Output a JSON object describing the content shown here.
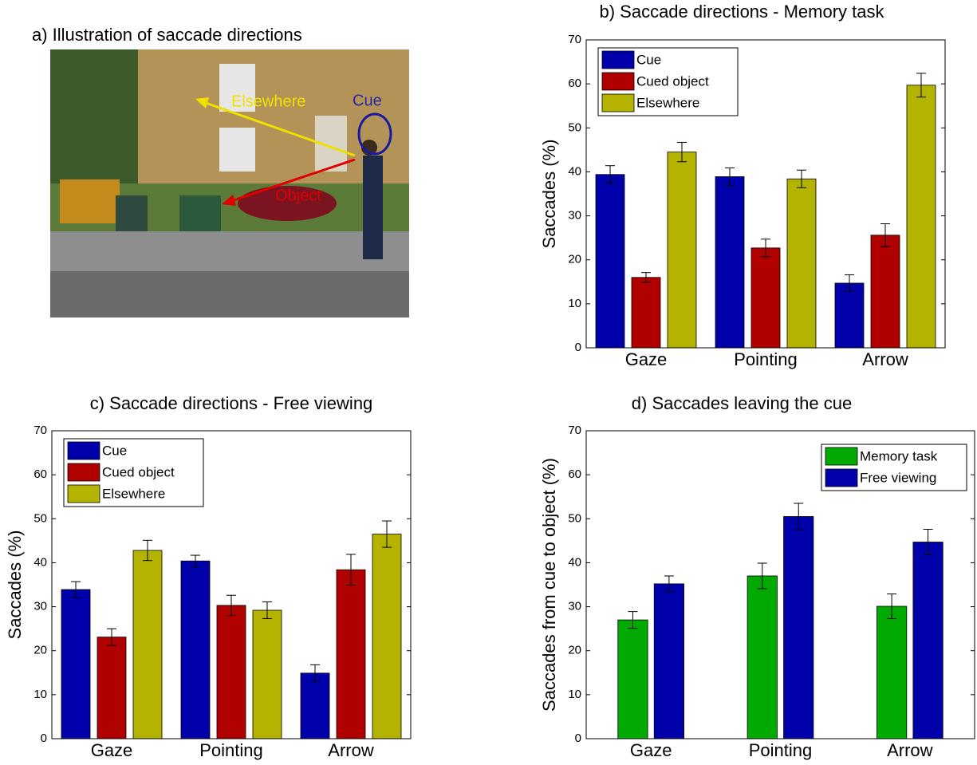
{
  "illustration": {
    "title": "a) Illustration of saccade directions",
    "labels": [
      "Elsewhere",
      "Cue",
      "Object"
    ]
  },
  "chart_data": [
    {
      "type": "bar",
      "title": "b) Saccade directions - Memory task",
      "ylabel": "Saccades (%)",
      "categories": [
        "Gaze",
        "Pointing",
        "Arrow"
      ],
      "series": [
        {
          "name": "Cue",
          "color": "#0000aa",
          "values": [
            39.4,
            38.9,
            14.7
          ],
          "errors": [
            2,
            2,
            1.9
          ]
        },
        {
          "name": "Cued object",
          "color": "#b00000",
          "values": [
            16,
            22.7,
            25.6
          ],
          "errors": [
            1.1,
            2,
            2.6
          ]
        },
        {
          "name": "Elsewhere",
          "color": "#b4b400",
          "values": [
            44.5,
            38.4,
            59.7
          ],
          "errors": [
            2.2,
            2,
            2.7
          ]
        }
      ],
      "ylim": [
        0,
        70
      ],
      "yticks": [
        0,
        10,
        20,
        30,
        40,
        50,
        60,
        70
      ],
      "legend": "upper left"
    },
    {
      "type": "bar",
      "title": "c) Saccade directions - Free viewing",
      "ylabel": "Saccades (%)",
      "categories": [
        "Gaze",
        "Pointing",
        "Arrow"
      ],
      "series": [
        {
          "name": "Cue",
          "color": "#0000aa",
          "values": [
            33.9,
            40.4,
            14.9
          ],
          "errors": [
            1.8,
            1.3,
            1.9
          ]
        },
        {
          "name": "Cued object",
          "color": "#b00000",
          "values": [
            23.1,
            30.3,
            38.4
          ],
          "errors": [
            1.9,
            2.3,
            3.5
          ]
        },
        {
          "name": "Elsewhere",
          "color": "#b4b400",
          "values": [
            42.8,
            29.2,
            46.5
          ],
          "errors": [
            2.3,
            1.9,
            3
          ]
        }
      ],
      "ylim": [
        0,
        70
      ],
      "yticks": [
        0,
        10,
        20,
        30,
        40,
        50,
        60,
        70
      ],
      "legend": "upper left"
    },
    {
      "type": "bar",
      "title": "d) Saccades leaving the cue",
      "ylabel": "Saccades from cue to object (%)",
      "categories": [
        "Gaze",
        "Pointing",
        "Arrow"
      ],
      "series": [
        {
          "name": "Memory task",
          "color": "#00aa00",
          "values": [
            27,
            37,
            30.1
          ],
          "errors": [
            1.9,
            2.9,
            2.8
          ]
        },
        {
          "name": "Free viewing",
          "color": "#0000aa",
          "values": [
            35.2,
            50.5,
            44.7
          ],
          "errors": [
            1.8,
            3,
            2.9
          ]
        }
      ],
      "ylim": [
        0,
        70
      ],
      "yticks": [
        0,
        10,
        20,
        30,
        40,
        50,
        60,
        70
      ],
      "legend": "upper right"
    }
  ]
}
